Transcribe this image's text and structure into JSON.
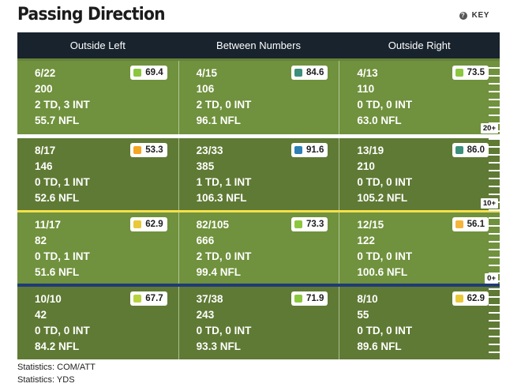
{
  "title": "Passing Direction",
  "key_label": "KEY",
  "key_icon": "question-icon",
  "columns": [
    "Outside Left",
    "Between Numbers",
    "Outside Right"
  ],
  "zones": [
    "20+",
    "10+",
    "0+"
  ],
  "rows": [
    {
      "cells": [
        {
          "com_att": "6/22",
          "yds": "200",
          "td_int": "2 TD, 3 INT",
          "nfl": "55.7 NFL",
          "grade": "69.4",
          "color": "#8cc63f"
        },
        {
          "com_att": "4/15",
          "yds": "106",
          "td_int": "2 TD, 0 INT",
          "nfl": "96.1 NFL",
          "grade": "84.6",
          "color": "#3c8f7a"
        },
        {
          "com_att": "4/13",
          "yds": "110",
          "td_int": "0 TD, 0 INT",
          "nfl": "63.0 NFL",
          "grade": "73.5",
          "color": "#8cc63f"
        }
      ]
    },
    {
      "cells": [
        {
          "com_att": "8/17",
          "yds": "146",
          "td_int": "0 TD, 1 INT",
          "nfl": "52.6 NFL",
          "grade": "53.3",
          "color": "#f5a623"
        },
        {
          "com_att": "23/33",
          "yds": "385",
          "td_int": "1 TD, 1 INT",
          "nfl": "106.3 NFL",
          "grade": "91.6",
          "color": "#2d7fb4"
        },
        {
          "com_att": "13/19",
          "yds": "210",
          "td_int": "0 TD, 0 INT",
          "nfl": "105.2 NFL",
          "grade": "86.0",
          "color": "#3c8f7a"
        }
      ]
    },
    {
      "cells": [
        {
          "com_att": "11/17",
          "yds": "82",
          "td_int": "0 TD, 1 INT",
          "nfl": "51.6 NFL",
          "grade": "62.9",
          "color": "#e8c93a"
        },
        {
          "com_att": "82/105",
          "yds": "666",
          "td_int": "2 TD, 0 INT",
          "nfl": "99.4 NFL",
          "grade": "73.3",
          "color": "#8cc63f"
        },
        {
          "com_att": "12/15",
          "yds": "122",
          "td_int": "0 TD, 0 INT",
          "nfl": "100.6 NFL",
          "grade": "56.1",
          "color": "#f5b53a"
        }
      ]
    },
    {
      "cells": [
        {
          "com_att": "10/10",
          "yds": "42",
          "td_int": "0 TD, 0 INT",
          "nfl": "84.2 NFL",
          "grade": "67.7",
          "color": "#b7d23f"
        },
        {
          "com_att": "37/38",
          "yds": "243",
          "td_int": "0 TD, 0 INT",
          "nfl": "93.3 NFL",
          "grade": "71.9",
          "color": "#8cc63f"
        },
        {
          "com_att": "8/10",
          "yds": "55",
          "td_int": "0 TD, 0 INT",
          "nfl": "89.6 NFL",
          "grade": "62.9",
          "color": "#e8c93a"
        }
      ]
    }
  ],
  "footnotes": [
    "Statistics: COM/ATT",
    "Statistics: YDS"
  ]
}
